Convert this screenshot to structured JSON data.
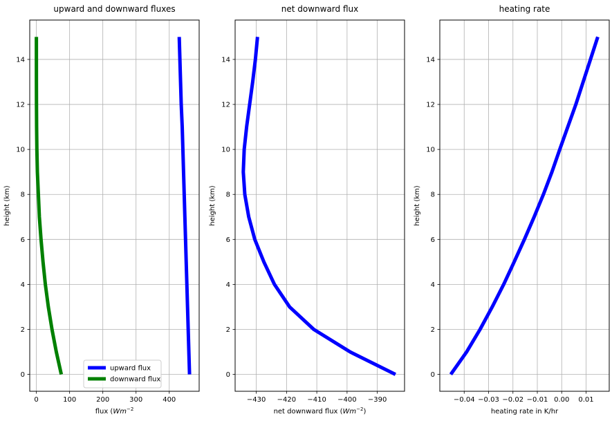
{
  "chart_data": [
    {
      "type": "line",
      "title": "upward and downward fluxes",
      "xlabel": "flux ($W m^{-2}$",
      "ylabel": "height (km)",
      "xlim": [
        -20,
        490
      ],
      "ylim": [
        -0.75,
        15.75
      ],
      "xticks": [
        0,
        100,
        200,
        300,
        400
      ],
      "yticks": [
        0,
        2,
        4,
        6,
        8,
        10,
        12,
        14
      ],
      "grid": true,
      "legend": "lower-right",
      "series": [
        {
          "name": "upward flux",
          "color": "#0000ff",
          "y": [
            0,
            1,
            2,
            3,
            4,
            5,
            6,
            7,
            8,
            9,
            10,
            11,
            12,
            13,
            14,
            15
          ],
          "x": [
            461,
            459,
            457,
            455,
            453,
            451,
            449,
            447,
            445,
            443,
            441,
            439,
            436,
            434,
            432,
            430
          ]
        },
        {
          "name": "downward flux",
          "color": "#008000",
          "y": [
            0,
            1,
            2,
            3,
            4,
            5,
            6,
            7,
            8,
            9,
            10,
            11,
            12,
            13,
            14,
            15
          ],
          "x": [
            75,
            60,
            47,
            36,
            27,
            20,
            14,
            9,
            6,
            3,
            1.5,
            0.7,
            0.3,
            0.1,
            0.05,
            0
          ]
        }
      ]
    },
    {
      "type": "line",
      "title": "net downward flux",
      "xlabel": "net downward flux ($W m^{-2}$)",
      "ylabel": "height (km)",
      "xlim": [
        -437,
        -381
      ],
      "ylim": [
        -0.75,
        15.75
      ],
      "xticks": [
        -430,
        -420,
        -410,
        -400,
        -390
      ],
      "yticks": [
        0,
        2,
        4,
        6,
        8,
        10,
        12,
        14
      ],
      "grid": true,
      "series": [
        {
          "color": "#0000ff",
          "y": [
            0,
            1,
            2,
            3,
            4,
            5,
            6,
            7,
            8,
            9,
            10,
            11,
            12,
            13,
            14,
            15
          ],
          "x": [
            -384,
            -399,
            -411,
            -419,
            -424,
            -427.5,
            -430.5,
            -432.5,
            -433.8,
            -434.3,
            -434,
            -433.2,
            -432.2,
            -431.2,
            -430.3,
            -429.6
          ]
        }
      ]
    },
    {
      "type": "line",
      "title": "heating rate",
      "xlabel": "heating rate in K/hr",
      "ylabel": "height (km)",
      "xlim": [
        -0.05,
        0.0195
      ],
      "ylim": [
        -0.75,
        15.75
      ],
      "xticks": [
        -0.04,
        -0.03,
        -0.02,
        -0.01,
        0.0,
        0.01
      ],
      "yticks": [
        0,
        2,
        4,
        6,
        8,
        10,
        12,
        14
      ],
      "grid": true,
      "series": [
        {
          "color": "#0000ff",
          "y": [
            0,
            1,
            2,
            3,
            4,
            5,
            6,
            7,
            8,
            9,
            10,
            11,
            12,
            13,
            14,
            15
          ],
          "x": [
            -0.0455,
            -0.039,
            -0.0335,
            -0.0285,
            -0.0238,
            -0.0195,
            -0.0153,
            -0.0113,
            -0.0075,
            -0.004,
            -0.0008,
            0.0025,
            0.0058,
            0.0088,
            0.0118,
            0.0148
          ]
        }
      ]
    }
  ]
}
